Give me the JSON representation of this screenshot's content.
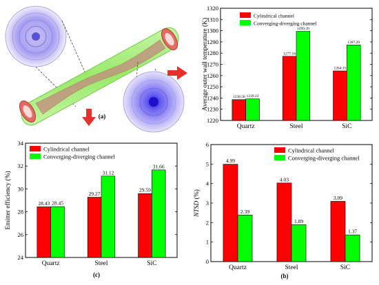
{
  "panels": {
    "a": {
      "label": "(a)"
    },
    "b": {
      "label": "(b)"
    },
    "c": {
      "label": "(c)"
    }
  },
  "chart_data": [
    {
      "id": "top-right",
      "type": "bar",
      "categories": [
        "Quartz",
        "Steel",
        "SiC"
      ],
      "series": [
        {
          "name": "Cylindrical channel",
          "values": [
            1238.58,
            1277.16,
            1264.15
          ],
          "labels": [
            "1238.58",
            "1277.16",
            "1264.15"
          ],
          "color": "#ff0000"
        },
        {
          "name": "Converging-diverging channel",
          "values": [
            1239.22,
            1299.39,
            1287.29
          ],
          "labels": [
            "1239.22",
            "1299.39",
            "1287.29"
          ],
          "color": "#00ff00"
        }
      ],
      "xlabel": "",
      "ylabel": "Average outer wall temperature (K)",
      "ylim": [
        1220,
        1320
      ],
      "yticks": [
        "1220",
        "1230",
        "1240",
        "1250",
        "1260",
        "1270",
        "1280",
        "1290",
        "1300",
        "1310",
        "1320"
      ],
      "legend": "top-left"
    },
    {
      "id": "bottom-left",
      "type": "bar",
      "categories": [
        "Quartz",
        "Steel",
        "SiC"
      ],
      "series": [
        {
          "name": "Cylindrical channel",
          "values": [
            28.43,
            29.27,
            29.59
          ],
          "labels": [
            "28.43",
            "29.27",
            "29.59"
          ],
          "color": "#ff0000"
        },
        {
          "name": "Converging-diverging channel",
          "values": [
            28.45,
            31.12,
            31.66
          ],
          "labels": [
            "28.45",
            "31.12",
            "31.66"
          ],
          "color": "#00ff00"
        }
      ],
      "xlabel": "",
      "ylabel": "Emitter efficiency (%)",
      "ylim": [
        24,
        34
      ],
      "yticks": [
        "24",
        "26",
        "28",
        "30",
        "32",
        "34"
      ],
      "legend": "top-left"
    },
    {
      "id": "bottom-right",
      "type": "bar",
      "categories": [
        "Quartz",
        "Steel",
        "SiC"
      ],
      "series": [
        {
          "name": "Cylindrical channel",
          "values": [
            4.99,
            4.03,
            3.09
          ],
          "labels": [
            "4.99",
            "4.03",
            "3.09"
          ],
          "color": "#ff0000"
        },
        {
          "name": "Converging-diverging channel",
          "values": [
            2.39,
            1.89,
            1.37
          ],
          "labels": [
            "2.39",
            "1.89",
            "1.37"
          ],
          "color": "#00ff00"
        }
      ],
      "xlabel": "",
      "ylabel": "NTSD (%)",
      "ylim": [
        0,
        6
      ],
      "yticks": [
        "0",
        "1",
        "2",
        "3",
        "4",
        "5",
        "6"
      ],
      "legend": "top-right"
    }
  ]
}
